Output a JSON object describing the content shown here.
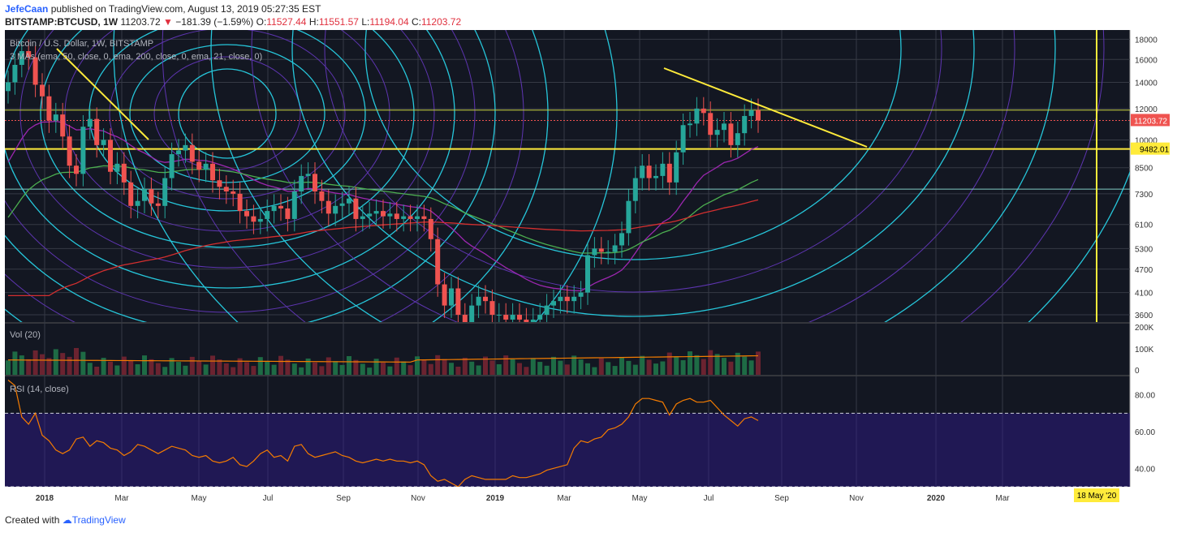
{
  "header": {
    "author": "JefeCaan",
    "published_text": "published on TradingView.com, August 13, 2019 05:27:35 EST",
    "symbol": "BITSTAMP:BTCUSD, 1W",
    "last": "11203.72",
    "down_arrow": "▼",
    "change": "−181.39 (−1.59%)",
    "o_label": "O:",
    "o_value": "11527.44",
    "h_label": "H:",
    "h_value": "11551.57",
    "l_label": "L:",
    "l_value": "11194.04",
    "c_label": "C:",
    "c_value": "11203.72"
  },
  "footer": {
    "created_with": "Created with",
    "brand": "TradingView"
  },
  "colors": {
    "background": "#131722",
    "grid": "#363a45",
    "bull": "#26a69a",
    "bear": "#ef5350",
    "yellow": "#ffeb3b",
    "ema50": "#9c27b0",
    "ema200": "#d32f2f",
    "ema21": "#4caf50",
    "circles_a": "#26c6da",
    "circles_b": "#5e35b1",
    "rsi": "#f57c00",
    "vol_ma": "#f57c00",
    "rsi_band": "#311b92"
  },
  "chart_data": [
    {
      "type": "candlestick",
      "title": "Bitcoin / U.S. Dollar, 1W, BITSTAMP",
      "subtitle": "3 MAs (ema, 50, close, 0, ema, 200, close, 0, ema, 21, close, 0)",
      "x_ticks": [
        "2018",
        "Mar",
        "May",
        "Jul",
        "Sep",
        "Nov",
        "2019",
        "Mar",
        "May",
        "Jul",
        "Sep",
        "Nov",
        "2020",
        "Mar"
      ],
      "y_ticks": [
        18000,
        16000,
        14000,
        12000,
        10000,
        8500,
        7300,
        6100,
        5300,
        4700,
        4100,
        3600
      ],
      "y_scale": "log",
      "ylim": [
        3450,
        19000
      ],
      "last_price_label": "11203.72",
      "horizontal_level_label": "9482.01",
      "horizontal_levels": [
        9482.01,
        11900,
        7500
      ],
      "date_label": "18 May '20",
      "close_values": [
        14000,
        15500,
        16800,
        16200,
        13800,
        12900,
        11200,
        11600,
        10200,
        8600,
        8200,
        10800,
        11300,
        9700,
        10000,
        8300,
        8700,
        7800,
        6800,
        7000,
        7500,
        6900,
        6800,
        8000,
        9200,
        9400,
        9700,
        8800,
        8400,
        8700,
        7900,
        7600,
        7400,
        7300,
        6600,
        6400,
        6200,
        6300,
        6600,
        6800,
        6700,
        6300,
        7400,
        8100,
        8200,
        7400,
        7000,
        6500,
        6800,
        6900,
        7100,
        6300,
        6400,
        6500,
        6600,
        6400,
        6500,
        6300,
        6400,
        6300,
        6400,
        6300,
        5600,
        4300,
        3800,
        4200,
        3600,
        3300,
        3800,
        4000,
        3900,
        3600,
        3600,
        3500,
        3600,
        3500,
        3400,
        3500,
        3600,
        3800,
        3900,
        4000,
        3900,
        4000,
        4100,
        5100,
        5300,
        5200,
        5200,
        5400,
        5800,
        7000,
        8000,
        8600,
        8000,
        8100,
        8700,
        7800,
        9300,
        10900,
        11000,
        12000,
        11700,
        10300,
        10600,
        11000,
        9700,
        10400,
        11500,
        11900,
        11204
      ]
    },
    {
      "type": "bar",
      "title": "Vol (20)",
      "y_ticks": [
        "200K",
        "100K",
        "0"
      ],
      "ylim": [
        0,
        200
      ]
    },
    {
      "type": "line",
      "title": "RSI (14, close)",
      "y_ticks": [
        80,
        60,
        40
      ],
      "ylim": [
        30,
        90
      ],
      "bands": [
        70,
        30
      ],
      "values": [
        88,
        85,
        68,
        64,
        70,
        58,
        55,
        50,
        48,
        50,
        56,
        57,
        52,
        55,
        54,
        51,
        50,
        47,
        49,
        53,
        52,
        50,
        48,
        50,
        52,
        51,
        50,
        47,
        46,
        47,
        44,
        43,
        44,
        46,
        42,
        41,
        44,
        48,
        50,
        46,
        47,
        44,
        52,
        53,
        48,
        46,
        47,
        48,
        49,
        47,
        46,
        44,
        43,
        44,
        45,
        44,
        45,
        44,
        44,
        43,
        44,
        42,
        36,
        33,
        34,
        32,
        30,
        34,
        36,
        35,
        34,
        34,
        34,
        34,
        36,
        35,
        35,
        36,
        37,
        39,
        40,
        41,
        42,
        51,
        55,
        54,
        56,
        57,
        61,
        62,
        64,
        68,
        75,
        78,
        78,
        77,
        76,
        69,
        75,
        77,
        78,
        76,
        76,
        77,
        73,
        69,
        66,
        63,
        67,
        68,
        66
      ]
    }
  ]
}
